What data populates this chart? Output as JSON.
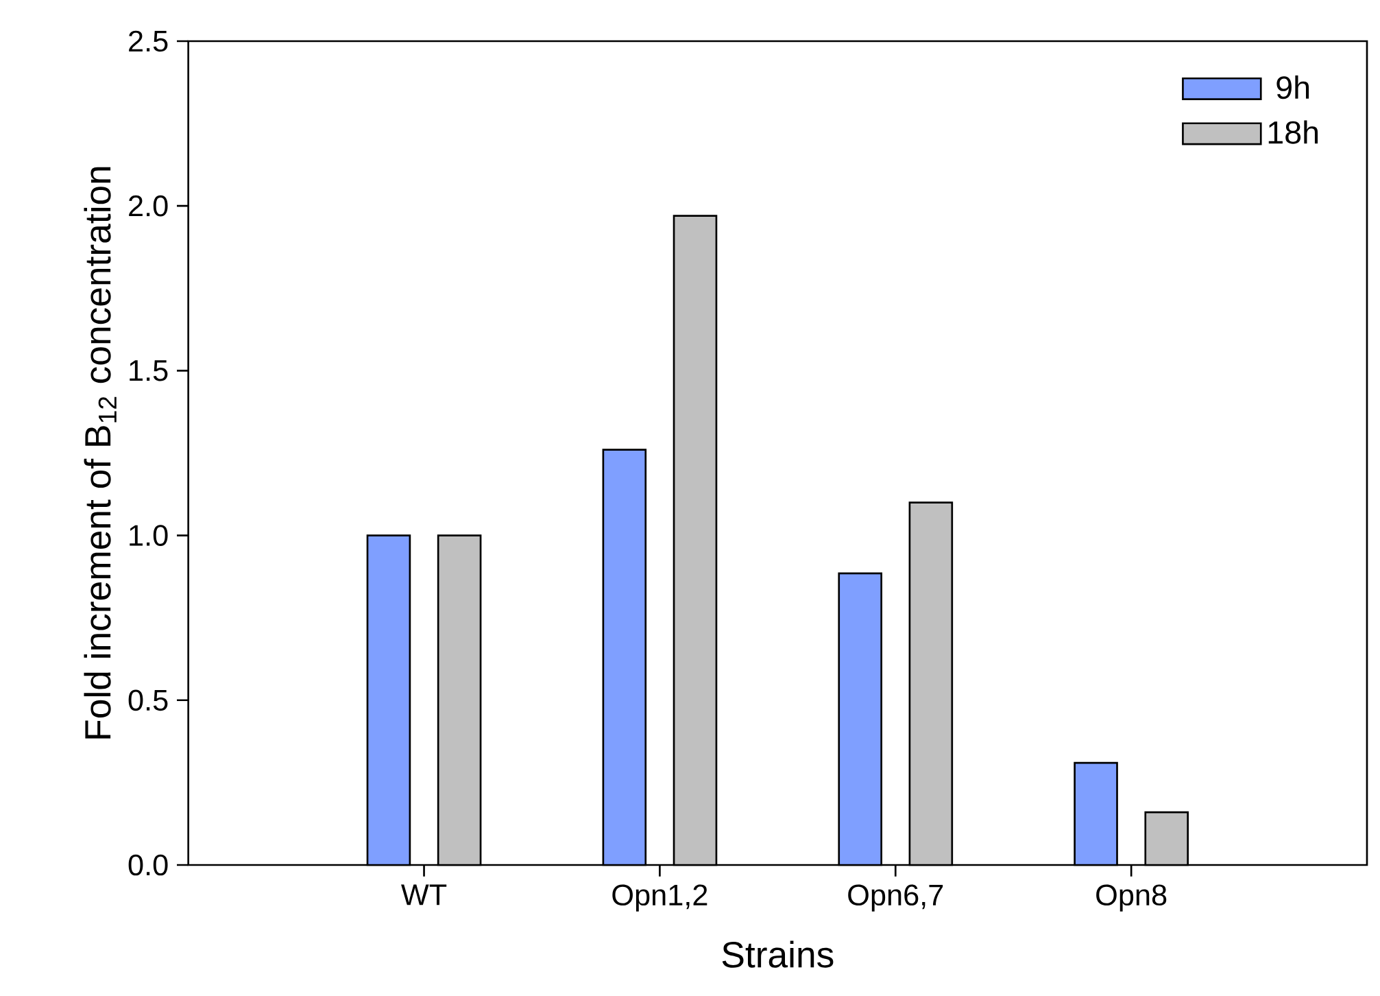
{
  "chart_data": {
    "type": "bar",
    "xlabel": "Strains",
    "ylabel": "Fold increment of B$_{12}$ concentration",
    "categories": [
      "WT",
      "Opn1,2",
      "Opn6,7",
      "Opn8"
    ],
    "series": [
      {
        "name": "9h",
        "color": "#7f9fff",
        "values": [
          1.0,
          1.26,
          0.885,
          0.31
        ]
      },
      {
        "name": "18h",
        "color": "#c0c0c0",
        "values": [
          1.0,
          1.97,
          1.1,
          0.16
        ]
      }
    ],
    "ylim": [
      0,
      2.5
    ],
    "yticks": [
      {
        "value": 0,
        "label": "0.0"
      },
      {
        "value": 0.5,
        "label": "0.5"
      },
      {
        "value": 1,
        "label": "1.0"
      },
      {
        "value": 1.5,
        "label": "1.5"
      },
      {
        "value": 2,
        "label": "2.0"
      },
      {
        "value": 2.5,
        "label": "2.5"
      }
    ],
    "legend": "top right",
    "grid": false
  }
}
